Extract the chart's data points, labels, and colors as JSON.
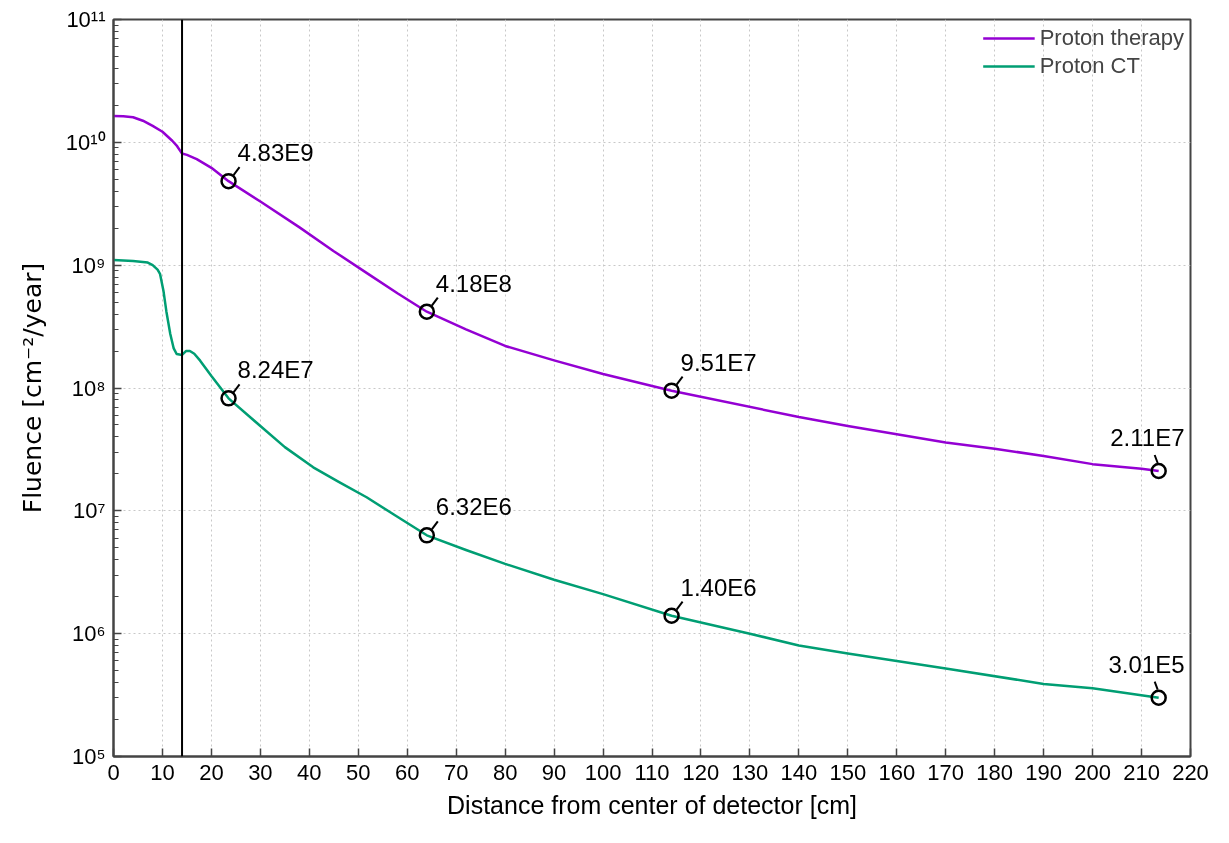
{
  "chart_data": {
    "type": "line",
    "xlabel": "Distance from center of detector [cm]",
    "ylabel": "Fluence [cm⁻²/year]",
    "xlim": [
      0,
      220
    ],
    "xticks": [
      0,
      10,
      20,
      30,
      40,
      50,
      60,
      70,
      80,
      90,
      100,
      110,
      120,
      130,
      140,
      150,
      160,
      170,
      180,
      190,
      200,
      210,
      220
    ],
    "ylim": [
      100000,
      100000000000
    ],
    "log": true,
    "yticks": [
      {
        "value": 100000,
        "label": "10⁵"
      },
      {
        "value": 1000000,
        "label": "10⁶"
      },
      {
        "value": 10000000,
        "label": "10⁷"
      },
      {
        "value": 100000000,
        "label": "10⁸"
      },
      {
        "value": 1000000000,
        "label": "10⁹"
      },
      {
        "value": 10000000000,
        "label": "10¹⁰"
      },
      {
        "value": 100000000000,
        "label": "10¹¹"
      }
    ],
    "grid": true,
    "legend": "top right",
    "ref_lines": [
      {
        "axis": "x",
        "value": 14,
        "color": "#000000"
      }
    ],
    "series": [
      {
        "name": "Proton therapy",
        "color": "#9400d3",
        "x": [
          0,
          2,
          4,
          6,
          8,
          10,
          12,
          13,
          14,
          15,
          17,
          20,
          23.5,
          30,
          38,
          45,
          52,
          58,
          64,
          72,
          80,
          90,
          100,
          114,
          140,
          150,
          160,
          170,
          180,
          190,
          200,
          210,
          213.5
        ],
        "values": [
          16400000000.0,
          16300000000.0,
          16000000000.0,
          15000000000.0,
          13600000000.0,
          12200000000.0,
          10300000000.0,
          9300000000.0,
          8100000000.0,
          7900000000.0,
          7300000000.0,
          6200000000.0,
          4830000000.0,
          3300000000.0,
          2030000000.0,
          1300000000.0,
          850000000.0,
          590000000.0,
          418000000.0,
          300000000.0,
          220000000.0,
          168000000.0,
          130000000.0,
          95100000.0,
          58000000.0,
          49000000.0,
          42000000.0,
          36000000.0,
          32000000.0,
          28000000.0,
          24000000.0,
          22000000.0,
          21100000.0
        ]
      },
      {
        "name": "Proton CT",
        "color": "#009e73",
        "x": [
          0,
          4,
          7,
          8,
          9,
          9.5,
          10.2,
          10.8,
          11.6,
          12.3,
          12.9,
          14,
          14.8,
          15.6,
          16.5,
          17.7,
          20,
          23.5,
          30,
          35,
          40.8,
          46,
          51.7,
          57.5,
          64,
          72,
          80,
          90,
          100,
          114,
          130,
          140,
          150,
          170,
          190,
          200,
          213.5
        ],
        "values": [
          1100000000.0,
          1080000000.0,
          1050000000.0,
          1000000000.0,
          920000000.0,
          850000000.0,
          620000000.0,
          420000000.0,
          275000000.0,
          210000000.0,
          189000000.0,
          186000000.0,
          200000000.0,
          200000000.0,
          190000000.0,
          167000000.0,
          125000000.0,
          82400000.0,
          49000000.0,
          33000000.0,
          22600000.0,
          17200000.0,
          12900000.0,
          9200000.0,
          6320000.0,
          4800000.0,
          3700000.0,
          2750000.0,
          2100000.0,
          1400000.0,
          1000000.0,
          800000.0,
          690000.0,
          520000.0,
          390000.0,
          360000.0,
          301000.0
        ]
      },
      {
        "type": "scatter",
        "color": "#000000",
        "marker": "circle",
        "x": [
          23.5,
          64,
          114,
          213.5,
          23.5,
          64,
          114,
          213.5
        ],
        "values": [
          4830000000.0,
          418000000.0,
          95100000.0,
          21100000.0,
          82400000.0,
          6320000.0,
          1400000.0,
          301000.0
        ],
        "value_labels": [
          "4.83E9",
          "4.18E8",
          "9.51E7",
          "2.11E7",
          "8.24E7",
          "6.32E6",
          "1.40E6",
          "3.01E5"
        ]
      }
    ]
  }
}
